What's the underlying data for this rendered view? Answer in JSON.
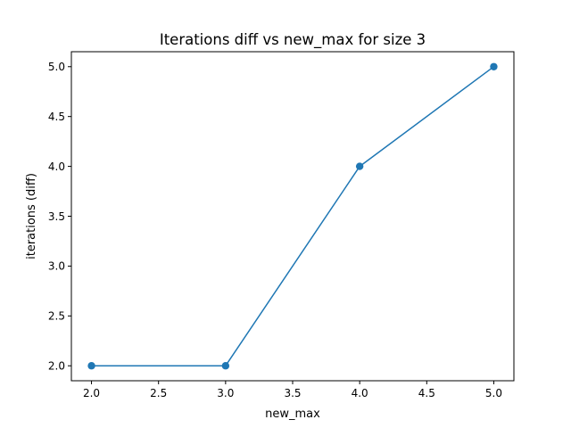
{
  "chart_data": {
    "type": "line",
    "title": "Iterations diff vs new_max for size 3",
    "xlabel": "new_max",
    "ylabel": "iterations (diff)",
    "x": [
      2.0,
      3.0,
      4.0,
      5.0
    ],
    "series": [
      {
        "values": [
          2.0,
          2.0,
          4.0,
          5.0
        ],
        "color": "#1f77b4",
        "marker": "circle"
      }
    ],
    "xlim": [
      1.85,
      5.15
    ],
    "ylim": [
      1.85,
      5.15
    ],
    "xticks": [
      "2.0",
      "2.5",
      "3.0",
      "3.5",
      "4.0",
      "4.5",
      "5.0"
    ],
    "yticks": [
      "2.0",
      "2.5",
      "3.0",
      "3.5",
      "4.0",
      "4.5",
      "5.0"
    ],
    "grid": false,
    "legend": "none"
  }
}
